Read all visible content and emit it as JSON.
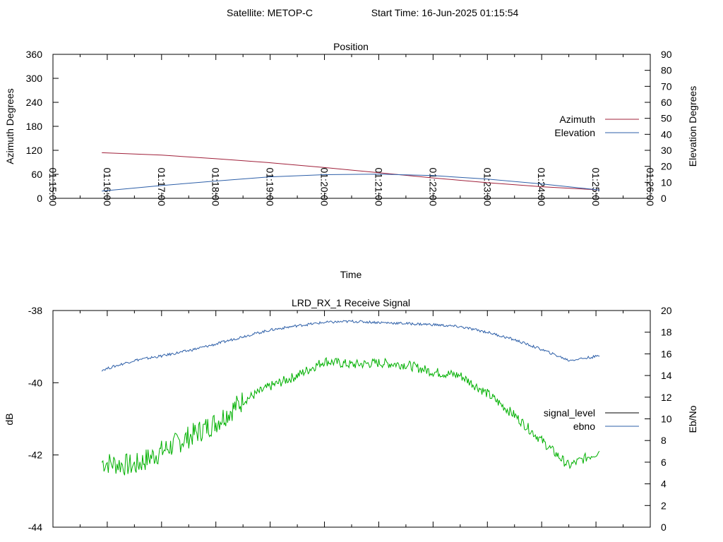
{
  "header": {
    "satellite": "Satellite: METOP-C",
    "start_time": "Start Time: 16-Jun-2025 01:15:54"
  },
  "chart_data": [
    {
      "type": "line",
      "title": "Position",
      "xlabel": "Time",
      "ylabel": "Azimuth Degrees",
      "y2label": "Elevation Degrees",
      "xlim": [
        "01:15:00",
        "01:26:00"
      ],
      "ylim": [
        0,
        360
      ],
      "y2lim": [
        0,
        90
      ],
      "x_ticks": [
        "01:15:00",
        "01:16:00",
        "01:17:00",
        "01:18:00",
        "01:19:00",
        "01:20:00",
        "01:21:00",
        "01:22:00",
        "01:23:00",
        "01:24:00",
        "01:25:00",
        "01:26:00"
      ],
      "y_ticks": [
        "0",
        "60",
        "120",
        "180",
        "240",
        "300",
        "360"
      ],
      "y2_ticks": [
        "0",
        "10",
        "20",
        "30",
        "40",
        "50",
        "60",
        "70",
        "80",
        "90"
      ],
      "legend": "right",
      "grid": false,
      "series": [
        {
          "name": "Azimuth",
          "axis": "left",
          "color": "#a0203a",
          "x": [
            "01:15:54",
            "01:17:00",
            "01:18:00",
            "01:19:00",
            "01:20:00",
            "01:21:00",
            "01:22:00",
            "01:23:00",
            "01:24:00",
            "01:25:04"
          ],
          "y": [
            114,
            108,
            99,
            89,
            77,
            64,
            51,
            39,
            29,
            21
          ]
        },
        {
          "name": "Elevation",
          "axis": "right",
          "color": "#2d5fa8",
          "x": [
            "01:15:54",
            "01:17:00",
            "01:18:00",
            "01:19:00",
            "01:20:00",
            "01:21:00",
            "01:22:00",
            "01:23:00",
            "01:24:00",
            "01:25:04"
          ],
          "y": [
            4.5,
            8,
            10.8,
            13.4,
            14.8,
            15.1,
            14.2,
            12,
            9,
            5.2
          ]
        }
      ]
    },
    {
      "type": "line",
      "title": "LRD_RX_1 Receive Signal",
      "xlabel": "",
      "ylabel": "dB",
      "y2label": "Eb/No",
      "xlim": [
        "01:15:00",
        "01:26:00"
      ],
      "ylim": [
        -44,
        -38
      ],
      "y2lim": [
        0,
        20
      ],
      "y_ticks": [
        "-44",
        "-42",
        "-40",
        "-38"
      ],
      "y2_ticks": [
        "0",
        "2",
        "4",
        "6",
        "8",
        "10",
        "12",
        "14",
        "16",
        "18",
        "20"
      ],
      "legend": "right",
      "grid": false,
      "series": [
        {
          "name": "signal_level",
          "axis": "left",
          "color": "#00b000",
          "x": [
            "01:15:54",
            "01:16:30",
            "01:17:00",
            "01:17:30",
            "01:18:00",
            "01:18:30",
            "01:19:00",
            "01:19:30",
            "01:20:00",
            "01:20:30",
            "01:21:00",
            "01:21:30",
            "01:22:00",
            "01:22:30",
            "01:23:00",
            "01:23:30",
            "01:24:00",
            "01:24:30",
            "01:25:04"
          ],
          "y": [
            -42.2,
            -42.3,
            -41.9,
            -41.5,
            -41.1,
            -40.5,
            -40.1,
            -39.8,
            -39.4,
            -39.5,
            -39.45,
            -39.5,
            -39.7,
            -39.8,
            -40.3,
            -40.9,
            -41.6,
            -42.3,
            -41.9
          ]
        },
        {
          "name": "ebno",
          "axis": "right",
          "color": "#2d5fa8",
          "x": [
            "01:15:54",
            "01:16:30",
            "01:17:00",
            "01:17:30",
            "01:18:00",
            "01:18:30",
            "01:19:00",
            "01:19:30",
            "01:20:00",
            "01:20:30",
            "01:21:00",
            "01:21:30",
            "01:22:00",
            "01:22:30",
            "01:23:00",
            "01:23:30",
            "01:24:00",
            "01:24:30",
            "01:25:04"
          ],
          "y": [
            14.5,
            15.4,
            15.8,
            16.3,
            16.9,
            17.6,
            18.2,
            18.6,
            18.9,
            19.0,
            18.9,
            18.8,
            18.7,
            18.5,
            18.0,
            17.3,
            16.4,
            15.4,
            15.8
          ]
        }
      ]
    }
  ]
}
